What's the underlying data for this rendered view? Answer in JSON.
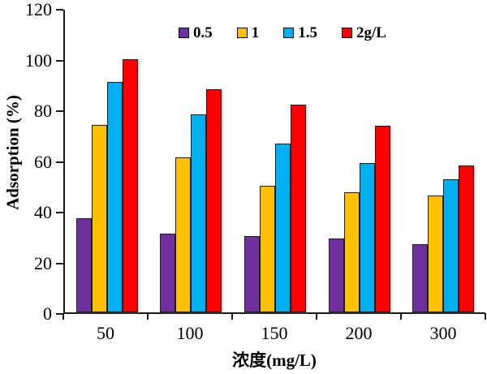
{
  "chart_data": {
    "type": "bar",
    "title": "",
    "xlabel": "浓度(mg/L)",
    "ylabel": "Adsorption (%)",
    "categories": [
      "50",
      "100",
      "150",
      "200",
      "300"
    ],
    "series": [
      {
        "name": "0.5",
        "color": "#7030A0",
        "values": [
          37,
          31,
          30,
          29,
          27
        ]
      },
      {
        "name": "1",
        "color": "#FFC000",
        "values": [
          74,
          61,
          50,
          47.5,
          46
        ]
      },
      {
        "name": "1.5",
        "color": "#00B0F0",
        "values": [
          91,
          78,
          66.5,
          59,
          52.5
        ]
      },
      {
        "name": "2g/L",
        "color": "#FF0000",
        "values": [
          100,
          88,
          82,
          73.5,
          58
        ]
      }
    ],
    "ylim": [
      0,
      120
    ],
    "yticks": [
      0,
      20,
      40,
      60,
      80,
      100,
      120
    ],
    "grid": false,
    "legend_position": "top",
    "axis_color": "#1a1a1a"
  }
}
